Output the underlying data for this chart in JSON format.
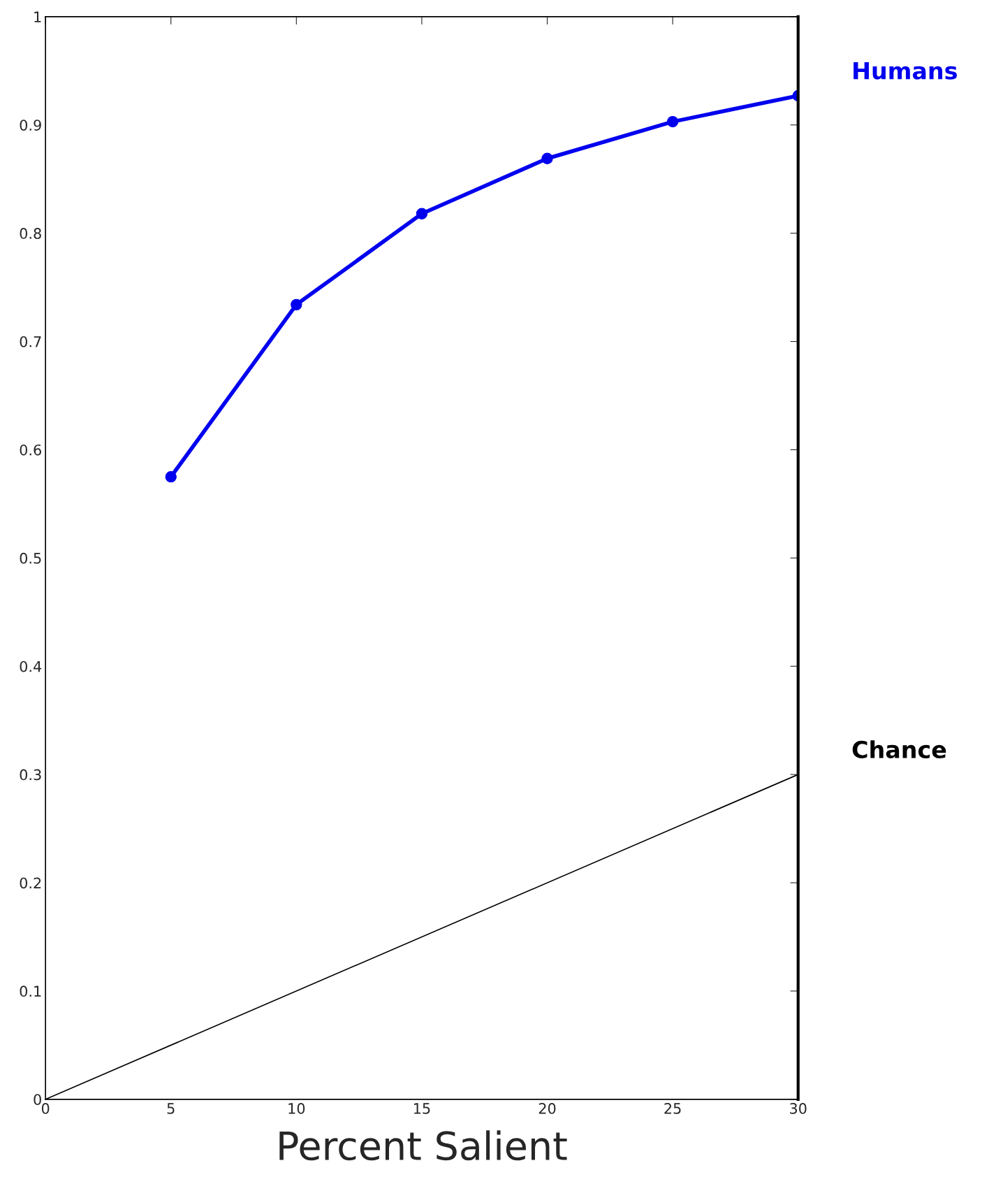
{
  "chart_data": {
    "type": "line",
    "xlabel": "Percent Salient",
    "xlim": [
      0,
      30
    ],
    "xticks": [
      0,
      5,
      10,
      15,
      20,
      25,
      30
    ],
    "ylim": [
      0,
      1
    ],
    "yticks": [
      0,
      0.1,
      0.2,
      0.3,
      0.4,
      0.5,
      0.6,
      0.7,
      0.8,
      0.9,
      1
    ],
    "grid": false,
    "legend": false,
    "series": [
      {
        "name": "Humans",
        "color": "#0000ee",
        "x": [
          5,
          10,
          15,
          20,
          25,
          30
        ],
        "values": [
          0.575,
          0.734,
          0.818,
          0.869,
          0.903,
          0.927
        ],
        "marker": "circle"
      },
      {
        "name": "Chance",
        "color": "#000000",
        "x": [
          0,
          30
        ],
        "values": [
          0,
          0.3
        ],
        "marker": "none"
      }
    ]
  }
}
